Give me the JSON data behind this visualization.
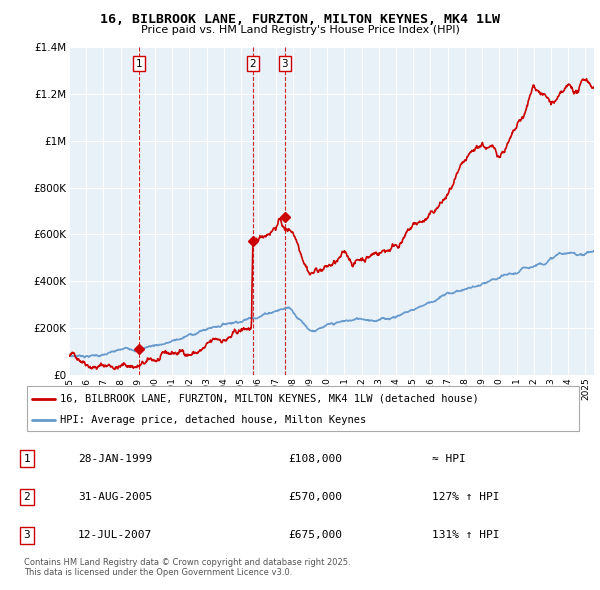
{
  "title": "16, BILBROOK LANE, FURZTON, MILTON KEYNES, MK4 1LW",
  "subtitle": "Price paid vs. HM Land Registry's House Price Index (HPI)",
  "transactions": [
    {
      "label": "1",
      "date_num": 1999.08,
      "price": 108000
    },
    {
      "label": "2",
      "date_num": 2005.67,
      "price": 570000
    },
    {
      "label": "3",
      "date_num": 2007.54,
      "price": 675000
    }
  ],
  "table_rows": [
    {
      "num": "1",
      "date": "28-JAN-1999",
      "price": "£108,000",
      "rel": "≈ HPI"
    },
    {
      "num": "2",
      "date": "31-AUG-2005",
      "price": "£570,000",
      "rel": "127% ↑ HPI"
    },
    {
      "num": "3",
      "date": "12-JUL-2007",
      "price": "£675,000",
      "rel": "131% ↑ HPI"
    }
  ],
  "legend_entries": [
    "16, BILBROOK LANE, FURZTON, MILTON KEYNES, MK4 1LW (detached house)",
    "HPI: Average price, detached house, Milton Keynes"
  ],
  "footer": "Contains HM Land Registry data © Crown copyright and database right 2025.\nThis data is licensed under the Open Government Licence v3.0.",
  "property_color": "#cc0000",
  "hpi_color": "#6699cc",
  "chart_bg": "#e8f0f8",
  "ylim": [
    0,
    1400000
  ],
  "xlim_start": 1995.0,
  "xlim_end": 2025.5,
  "yticks": [
    0,
    200000,
    400000,
    600000,
    800000,
    1000000,
    1200000,
    1400000
  ],
  "ylabels": [
    "£0",
    "£200K",
    "£400K",
    "£600K",
    "£800K",
    "£1M",
    "£1.2M",
    "£1.4M"
  ]
}
